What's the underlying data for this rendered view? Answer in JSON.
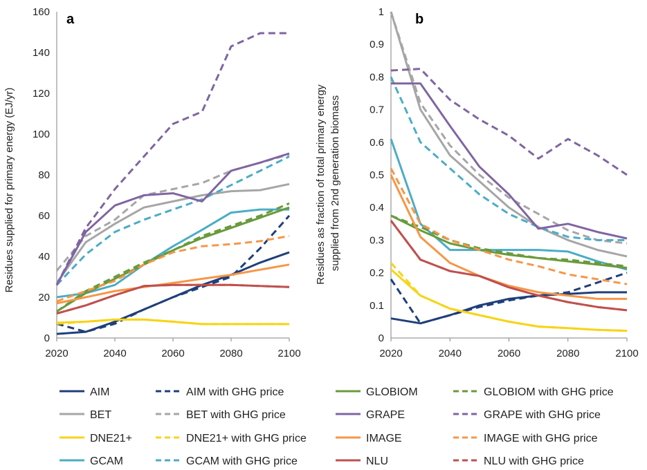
{
  "chart_data": [
    {
      "type": "line",
      "panel": "a",
      "ylabel": "Residues supplied for primary energy  (EJ/yr)",
      "x": [
        2020,
        2030,
        2040,
        2050,
        2060,
        2070,
        2080,
        2090,
        2100
      ],
      "xlim": [
        2020,
        2100
      ],
      "xticks": [
        "2020",
        "2040",
        "2060",
        "2080",
        "2100"
      ],
      "ylim": [
        0,
        160
      ],
      "yticks": [
        "0",
        "20",
        "40",
        "60",
        "80",
        "100",
        "120",
        "140",
        "160"
      ],
      "grid": false,
      "series": [
        {
          "name": "AIM",
          "dash": false,
          "values": [
            2,
            3,
            8,
            14,
            20,
            26,
            31,
            37,
            42
          ]
        },
        {
          "name": "AIM with GHG price",
          "dash": true,
          "values": [
            7,
            3,
            7,
            14,
            20,
            25,
            30,
            44,
            60
          ]
        },
        {
          "name": "BET",
          "dash": false,
          "values": [
            27,
            47,
            56,
            64,
            67,
            70,
            72,
            72.5,
            75.5
          ]
        },
        {
          "name": "BET with GHG price",
          "dash": true,
          "values": [
            33,
            50,
            58,
            70,
            73,
            76,
            82,
            86,
            90
          ]
        },
        {
          "name": "DNE21+",
          "dash": false,
          "values": [
            7.5,
            8,
            9,
            9,
            8,
            6.8,
            6.8,
            6.8,
            6.8
          ]
        },
        {
          "name": "DNE21+ with GHG price",
          "dash": true,
          "values": [
            7,
            8,
            9,
            9,
            8,
            6.8,
            6.8,
            6.8,
            6.8
          ]
        },
        {
          "name": "GCAM",
          "dash": false,
          "values": [
            20,
            22,
            26,
            36,
            45,
            53,
            61.5,
            63,
            63
          ]
        },
        {
          "name": "GCAM with GHG price",
          "dash": true,
          "values": [
            26,
            41,
            52,
            58,
            63,
            68,
            75,
            82,
            89
          ]
        },
        {
          "name": "GLOBIOM",
          "dash": false,
          "values": [
            13,
            22,
            29,
            36,
            43,
            49,
            54,
            59,
            64
          ]
        },
        {
          "name": "GLOBIOM with GHG price",
          "dash": true,
          "values": [
            13,
            23,
            30,
            37,
            43,
            50,
            55,
            60,
            66
          ]
        },
        {
          "name": "GRAPE",
          "dash": false,
          "values": [
            26,
            52,
            65,
            70,
            71,
            67,
            82,
            86,
            90.5
          ]
        },
        {
          "name": "GRAPE with GHG price",
          "dash": true,
          "values": [
            26,
            54,
            73,
            89,
            105,
            111,
            143,
            149.5,
            149.5
          ]
        },
        {
          "name": "IMAGE",
          "dash": false,
          "values": [
            17,
            20,
            23,
            25,
            27,
            29,
            31,
            33.5,
            36
          ]
        },
        {
          "name": "IMAGE with GHG price",
          "dash": true,
          "values": [
            18,
            23,
            28,
            36,
            42,
            45,
            46,
            47.5,
            50
          ]
        },
        {
          "name": "NLU",
          "dash": false,
          "values": [
            12,
            16,
            21,
            25.5,
            26,
            26,
            26,
            25.5,
            25
          ]
        },
        {
          "name": "NLU with GHG price",
          "dash": true,
          "values": [
            12,
            16,
            21,
            25.5,
            26,
            26,
            26,
            25.5,
            25
          ]
        }
      ]
    },
    {
      "type": "line",
      "panel": "b",
      "ylabel": "Residues as fraction of total primary energy supplied from 2nd generation biomass",
      "x": [
        2020,
        2030,
        2040,
        2050,
        2060,
        2070,
        2080,
        2090,
        2100
      ],
      "xlim": [
        2020,
        2100
      ],
      "xticks": [
        "2020",
        "2040",
        "2060",
        "2080",
        "2100"
      ],
      "ylim": [
        0,
        1
      ],
      "yticks": [
        "0",
        "0.1",
        "0.2",
        "0.3",
        "0.4",
        "0.5",
        "0.6",
        "0.7",
        "0.8",
        "0.9",
        "1"
      ],
      "grid": false,
      "series": [
        {
          "name": "AIM",
          "dash": false,
          "values": [
            0.06,
            0.045,
            0.07,
            0.1,
            0.12,
            0.13,
            0.135,
            0.14,
            0.14
          ]
        },
        {
          "name": "AIM with GHG price",
          "dash": true,
          "values": [
            0.18,
            0.045,
            0.07,
            0.095,
            0.115,
            0.13,
            0.14,
            0.17,
            0.2
          ]
        },
        {
          "name": "BET",
          "dash": false,
          "values": [
            1.0,
            0.7,
            0.56,
            0.48,
            0.4,
            0.34,
            0.3,
            0.27,
            0.25
          ]
        },
        {
          "name": "BET with GHG price",
          "dash": true,
          "values": [
            1.0,
            0.72,
            0.59,
            0.5,
            0.43,
            0.38,
            0.33,
            0.3,
            0.29
          ]
        },
        {
          "name": "DNE21+",
          "dash": false,
          "values": [
            0.21,
            0.13,
            0.09,
            0.07,
            0.05,
            0.035,
            0.03,
            0.025,
            0.022
          ]
        },
        {
          "name": "DNE21+ with GHG price",
          "dash": true,
          "values": [
            0.23,
            0.13,
            0.09,
            0.07,
            0.05,
            0.035,
            0.03,
            0.025,
            0.022
          ]
        },
        {
          "name": "GCAM",
          "dash": false,
          "values": [
            0.61,
            0.35,
            0.27,
            0.27,
            0.27,
            0.27,
            0.265,
            0.235,
            0.21
          ]
        },
        {
          "name": "GCAM with GHG price",
          "dash": true,
          "values": [
            0.8,
            0.6,
            0.52,
            0.44,
            0.38,
            0.34,
            0.31,
            0.3,
            0.3
          ]
        },
        {
          "name": "GLOBIOM",
          "dash": false,
          "values": [
            0.375,
            0.33,
            0.29,
            0.27,
            0.255,
            0.245,
            0.235,
            0.225,
            0.215
          ]
        },
        {
          "name": "GLOBIOM with GHG price",
          "dash": true,
          "values": [
            0.375,
            0.34,
            0.3,
            0.275,
            0.26,
            0.245,
            0.24,
            0.23,
            0.22
          ]
        },
        {
          "name": "GRAPE",
          "dash": false,
          "values": [
            0.78,
            0.78,
            0.65,
            0.525,
            0.44,
            0.335,
            0.35,
            0.325,
            0.305
          ]
        },
        {
          "name": "GRAPE with GHG price",
          "dash": true,
          "values": [
            0.82,
            0.825,
            0.73,
            0.67,
            0.62,
            0.55,
            0.61,
            0.56,
            0.5
          ]
        },
        {
          "name": "IMAGE",
          "dash": false,
          "values": [
            0.5,
            0.31,
            0.23,
            0.19,
            0.16,
            0.14,
            0.13,
            0.12,
            0.12
          ]
        },
        {
          "name": "IMAGE with GHG price",
          "dash": true,
          "values": [
            0.52,
            0.35,
            0.3,
            0.27,
            0.24,
            0.22,
            0.195,
            0.18,
            0.165
          ]
        },
        {
          "name": "NLU",
          "dash": false,
          "values": [
            0.36,
            0.24,
            0.205,
            0.19,
            0.155,
            0.13,
            0.11,
            0.095,
            0.085
          ]
        },
        {
          "name": "NLU with GHG price",
          "dash": true,
          "values": [
            0.36,
            0.24,
            0.205,
            0.19,
            0.155,
            0.13,
            0.11,
            0.095,
            0.085
          ]
        }
      ]
    }
  ],
  "colors": {
    "AIM": "#1f3f7a",
    "BET": "#a6a6a6",
    "DNE21+": "#f7d417",
    "GCAM": "#4bacc6",
    "GLOBIOM": "#6a9a3c",
    "GRAPE": "#8064a2",
    "IMAGE": "#f79646",
    "NLU": "#c0504d"
  },
  "legend": [
    {
      "model": "AIM",
      "label": "AIM",
      "dash": false
    },
    {
      "model": "AIM",
      "label": "AIM with GHG price",
      "dash": true
    },
    {
      "model": "GLOBIOM",
      "label": "GLOBIOM",
      "dash": false
    },
    {
      "model": "GLOBIOM",
      "label": "GLOBIOM with GHG price",
      "dash": true
    },
    {
      "model": "BET",
      "label": "BET",
      "dash": false
    },
    {
      "model": "BET",
      "label": "BET with GHG price",
      "dash": true
    },
    {
      "model": "GRAPE",
      "label": "GRAPE",
      "dash": false
    },
    {
      "model": "GRAPE",
      "label": "GRAPE with GHG price",
      "dash": true
    },
    {
      "model": "DNE21+",
      "label": "DNE21+",
      "dash": false
    },
    {
      "model": "DNE21+",
      "label": "DNE21+ with GHG price",
      "dash": true
    },
    {
      "model": "IMAGE",
      "label": "IMAGE",
      "dash": false
    },
    {
      "model": "IMAGE",
      "label": "IMAGE with GHG price",
      "dash": true
    },
    {
      "model": "GCAM",
      "label": "GCAM",
      "dash": false
    },
    {
      "model": "GCAM",
      "label": "GCAM with GHG price",
      "dash": true
    },
    {
      "model": "NLU",
      "label": "NLU",
      "dash": false
    },
    {
      "model": "NLU",
      "label": "NLU with GHG price",
      "dash": true
    }
  ]
}
